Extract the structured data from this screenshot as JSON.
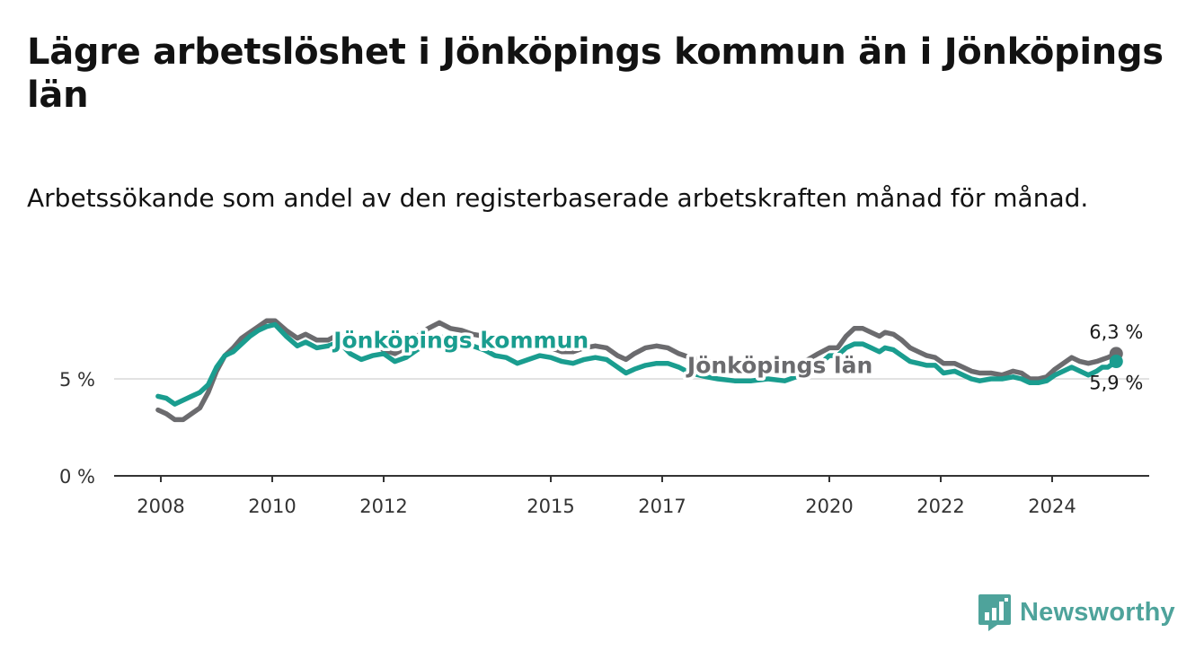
{
  "header": {
    "title": "Lägre arbetslöshet i Jönköpings kommun än i Jönköpings län",
    "subtitle": "Arbetssökande som andel av den registerbaserade arbetskraften månad för månad."
  },
  "brand": {
    "name": "Newsworthy",
    "color": "#4ea39b"
  },
  "chart_data": {
    "type": "line",
    "y_ticks": [
      {
        "value": 0,
        "label": "0 %"
      },
      {
        "value": 5,
        "label": "5 %"
      }
    ],
    "x_ticks": [
      {
        "value": 2008.0,
        "label": "2008"
      },
      {
        "value": 2010.0,
        "label": "2010"
      },
      {
        "value": 2012.0,
        "label": "2012"
      },
      {
        "value": 2015.0,
        "label": "2015"
      },
      {
        "value": 2017.0,
        "label": "2017"
      },
      {
        "value": 2020.0,
        "label": "2020"
      },
      {
        "value": 2022.0,
        "label": "2022"
      },
      {
        "value": 2024.0,
        "label": "2024"
      }
    ],
    "xlim": [
      2007.2,
      2025.8
    ],
    "ylim": [
      0,
      9.6
    ],
    "grid": "horizontal",
    "series": [
      {
        "name": "Jönköpings län",
        "color": "#6b6b6e",
        "end_label": "6,3 %",
        "points": [
          [
            2007.95,
            3.4
          ],
          [
            2008.1,
            3.2
          ],
          [
            2008.25,
            2.9
          ],
          [
            2008.4,
            2.9
          ],
          [
            2008.55,
            3.2
          ],
          [
            2008.7,
            3.5
          ],
          [
            2008.85,
            4.3
          ],
          [
            2009.0,
            5.4
          ],
          [
            2009.15,
            6.2
          ],
          [
            2009.3,
            6.6
          ],
          [
            2009.45,
            7.1
          ],
          [
            2009.6,
            7.4
          ],
          [
            2009.75,
            7.7
          ],
          [
            2009.9,
            8.0
          ],
          [
            2010.05,
            8.0
          ],
          [
            2010.25,
            7.5
          ],
          [
            2010.45,
            7.1
          ],
          [
            2010.6,
            7.3
          ],
          [
            2010.8,
            7.0
          ],
          [
            2011.0,
            7.0
          ],
          [
            2011.2,
            7.3
          ],
          [
            2011.4,
            6.9
          ],
          [
            2011.6,
            6.7
          ],
          [
            2011.8,
            6.8
          ],
          [
            2012.0,
            6.5
          ],
          [
            2012.2,
            6.3
          ],
          [
            2012.4,
            6.6
          ],
          [
            2012.6,
            7.2
          ],
          [
            2012.8,
            7.6
          ],
          [
            2013.0,
            7.9
          ],
          [
            2013.2,
            7.6
          ],
          [
            2013.4,
            7.5
          ],
          [
            2013.6,
            7.3
          ],
          [
            2013.8,
            7.2
          ],
          [
            2014.0,
            7.0
          ],
          [
            2014.2,
            6.9
          ],
          [
            2014.4,
            6.6
          ],
          [
            2014.6,
            6.6
          ],
          [
            2014.8,
            6.7
          ],
          [
            2015.0,
            6.6
          ],
          [
            2015.2,
            6.4
          ],
          [
            2015.4,
            6.4
          ],
          [
            2015.6,
            6.6
          ],
          [
            2015.8,
            6.7
          ],
          [
            2016.0,
            6.6
          ],
          [
            2016.2,
            6.2
          ],
          [
            2016.35,
            6.0
          ],
          [
            2016.5,
            6.3
          ],
          [
            2016.7,
            6.6
          ],
          [
            2016.9,
            6.7
          ],
          [
            2017.1,
            6.6
          ],
          [
            2017.3,
            6.3
          ],
          [
            2017.5,
            6.1
          ],
          [
            2017.8,
            5.9
          ],
          [
            2018.0,
            5.8
          ],
          [
            2018.3,
            5.6
          ],
          [
            2018.6,
            5.5
          ],
          [
            2018.9,
            5.5
          ],
          [
            2019.2,
            5.5
          ],
          [
            2019.5,
            5.8
          ],
          [
            2019.8,
            6.3
          ],
          [
            2020.0,
            6.6
          ],
          [
            2020.15,
            6.6
          ],
          [
            2020.3,
            7.2
          ],
          [
            2020.45,
            7.6
          ],
          [
            2020.6,
            7.6
          ],
          [
            2020.75,
            7.4
          ],
          [
            2020.9,
            7.2
          ],
          [
            2021.0,
            7.4
          ],
          [
            2021.15,
            7.3
          ],
          [
            2021.3,
            7.0
          ],
          [
            2021.45,
            6.6
          ],
          [
            2021.6,
            6.4
          ],
          [
            2021.75,
            6.2
          ],
          [
            2021.9,
            6.1
          ],
          [
            2022.05,
            5.8
          ],
          [
            2022.25,
            5.8
          ],
          [
            2022.4,
            5.6
          ],
          [
            2022.55,
            5.4
          ],
          [
            2022.7,
            5.3
          ],
          [
            2022.9,
            5.3
          ],
          [
            2023.1,
            5.2
          ],
          [
            2023.3,
            5.4
          ],
          [
            2023.45,
            5.3
          ],
          [
            2023.6,
            5.0
          ],
          [
            2023.75,
            5.0
          ],
          [
            2023.9,
            5.1
          ],
          [
            2024.05,
            5.5
          ],
          [
            2024.2,
            5.8
          ],
          [
            2024.35,
            6.1
          ],
          [
            2024.5,
            5.9
          ],
          [
            2024.65,
            5.8
          ],
          [
            2024.8,
            5.9
          ],
          [
            2024.9,
            6.0
          ],
          [
            2025.0,
            6.1
          ],
          [
            2025.15,
            6.3
          ]
        ]
      },
      {
        "name": "Jönköpings kommun",
        "color": "#1a9d8f",
        "end_label": "5,9 %",
        "points": [
          [
            2007.95,
            4.1
          ],
          [
            2008.1,
            4.0
          ],
          [
            2008.25,
            3.7
          ],
          [
            2008.4,
            3.9
          ],
          [
            2008.55,
            4.1
          ],
          [
            2008.7,
            4.3
          ],
          [
            2008.85,
            4.7
          ],
          [
            2009.0,
            5.6
          ],
          [
            2009.15,
            6.2
          ],
          [
            2009.3,
            6.4
          ],
          [
            2009.45,
            6.8
          ],
          [
            2009.6,
            7.2
          ],
          [
            2009.75,
            7.5
          ],
          [
            2009.9,
            7.7
          ],
          [
            2010.05,
            7.8
          ],
          [
            2010.25,
            7.2
          ],
          [
            2010.45,
            6.7
          ],
          [
            2010.6,
            6.9
          ],
          [
            2010.8,
            6.6
          ],
          [
            2011.0,
            6.7
          ],
          [
            2011.2,
            6.9
          ],
          [
            2011.4,
            6.3
          ],
          [
            2011.6,
            6.0
          ],
          [
            2011.8,
            6.2
          ],
          [
            2012.0,
            6.3
          ],
          [
            2012.2,
            5.9
          ],
          [
            2012.4,
            6.1
          ],
          [
            2012.6,
            6.5
          ],
          [
            2012.8,
            6.8
          ],
          [
            2013.0,
            7.2
          ],
          [
            2013.2,
            7.0
          ],
          [
            2013.4,
            7.0
          ],
          [
            2013.6,
            6.7
          ],
          [
            2013.8,
            6.5
          ],
          [
            2014.0,
            6.2
          ],
          [
            2014.2,
            6.1
          ],
          [
            2014.4,
            5.8
          ],
          [
            2014.6,
            6.0
          ],
          [
            2014.8,
            6.2
          ],
          [
            2015.0,
            6.1
          ],
          [
            2015.2,
            5.9
          ],
          [
            2015.4,
            5.8
          ],
          [
            2015.6,
            6.0
          ],
          [
            2015.8,
            6.1
          ],
          [
            2016.0,
            6.0
          ],
          [
            2016.2,
            5.6
          ],
          [
            2016.35,
            5.3
          ],
          [
            2016.5,
            5.5
          ],
          [
            2016.7,
            5.7
          ],
          [
            2016.9,
            5.8
          ],
          [
            2017.1,
            5.8
          ],
          [
            2017.3,
            5.6
          ],
          [
            2017.5,
            5.3
          ],
          [
            2017.8,
            5.1
          ],
          [
            2018.0,
            5.0
          ],
          [
            2018.3,
            4.9
          ],
          [
            2018.6,
            4.9
          ],
          [
            2018.9,
            5.0
          ],
          [
            2019.2,
            4.9
          ],
          [
            2019.5,
            5.2
          ],
          [
            2019.8,
            5.7
          ],
          [
            2020.0,
            6.2
          ],
          [
            2020.15,
            6.2
          ],
          [
            2020.3,
            6.6
          ],
          [
            2020.45,
            6.8
          ],
          [
            2020.6,
            6.8
          ],
          [
            2020.75,
            6.6
          ],
          [
            2020.9,
            6.4
          ],
          [
            2021.0,
            6.6
          ],
          [
            2021.15,
            6.5
          ],
          [
            2021.3,
            6.2
          ],
          [
            2021.45,
            5.9
          ],
          [
            2021.6,
            5.8
          ],
          [
            2021.75,
            5.7
          ],
          [
            2021.9,
            5.7
          ],
          [
            2022.05,
            5.3
          ],
          [
            2022.25,
            5.4
          ],
          [
            2022.4,
            5.2
          ],
          [
            2022.55,
            5.0
          ],
          [
            2022.7,
            4.9
          ],
          [
            2022.9,
            5.0
          ],
          [
            2023.1,
            5.0
          ],
          [
            2023.3,
            5.1
          ],
          [
            2023.45,
            5.0
          ],
          [
            2023.6,
            4.8
          ],
          [
            2023.75,
            4.8
          ],
          [
            2023.9,
            4.9
          ],
          [
            2024.05,
            5.2
          ],
          [
            2024.2,
            5.4
          ],
          [
            2024.35,
            5.6
          ],
          [
            2024.5,
            5.4
          ],
          [
            2024.65,
            5.2
          ],
          [
            2024.8,
            5.4
          ],
          [
            2024.9,
            5.6
          ],
          [
            2025.0,
            5.6
          ],
          [
            2025.15,
            5.9
          ]
        ]
      }
    ],
    "series_labels": [
      {
        "text": "Jönköpings kommun",
        "color": "#1a9d8f",
        "x": 2011.1,
        "y": 6.6
      },
      {
        "text": "Jönköpings län",
        "color": "#6b6b6e",
        "x": 2017.45,
        "y": 5.3
      }
    ]
  }
}
